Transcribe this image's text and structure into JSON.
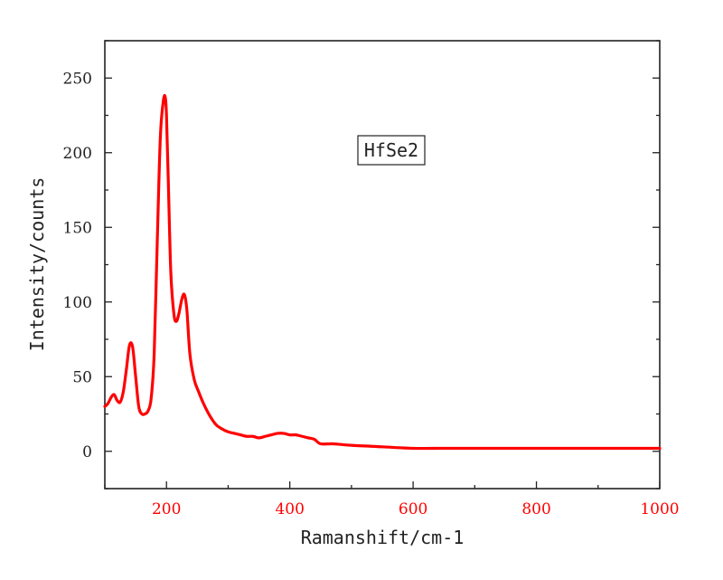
{
  "chart_data": {
    "type": "line",
    "title": "",
    "xlabel": "Ramanshift/cm-1",
    "ylabel": "Intensity/counts",
    "xlim": [
      100,
      1000
    ],
    "ylim": [
      -25,
      275
    ],
    "x_ticks": [
      200,
      400,
      600,
      800,
      1000
    ],
    "y_ticks": [
      0,
      50,
      100,
      150,
      200,
      250
    ],
    "x_tick_color": "#ff0000",
    "y_tick_color": "#222222",
    "grid": false,
    "legend_placement": "top-center",
    "series": [
      {
        "name": "HfSe2",
        "color": "#ff0000",
        "x": [
          100,
          105,
          110,
          115,
          120,
          125,
          130,
          135,
          140,
          145,
          150,
          155,
          160,
          165,
          170,
          175,
          180,
          185,
          190,
          195,
          198,
          200,
          203,
          207,
          212,
          216,
          220,
          225,
          229,
          233,
          238,
          245,
          252,
          260,
          270,
          280,
          290,
          300,
          310,
          320,
          330,
          340,
          350,
          360,
          370,
          380,
          390,
          400,
          410,
          420,
          430,
          440,
          450,
          470,
          500,
          550,
          600,
          650,
          700,
          750,
          800,
          850,
          900,
          950,
          1000
        ],
        "values": [
          30,
          32,
          36,
          38,
          34,
          33,
          40,
          55,
          71,
          70,
          50,
          30,
          25,
          25,
          27,
          35,
          65,
          140,
          210,
          235,
          237,
          225,
          180,
          120,
          92,
          87,
          92,
          102,
          105,
          95,
          65,
          48,
          40,
          32,
          24,
          18,
          15,
          13,
          12,
          11,
          10,
          10,
          9,
          10,
          11,
          12,
          12,
          11,
          11,
          10,
          9,
          8,
          5,
          5,
          4,
          3,
          2,
          2,
          2,
          2,
          2,
          2,
          2,
          2,
          2
        ]
      }
    ]
  }
}
